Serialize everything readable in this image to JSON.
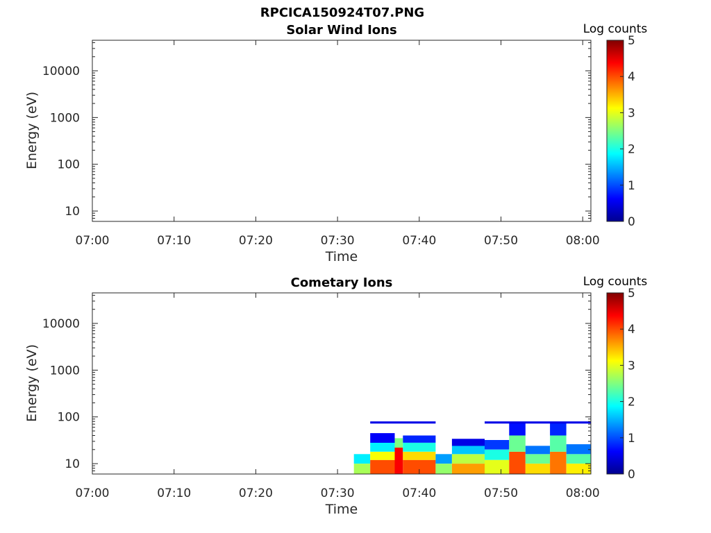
{
  "figure_title": "RPCICA150924T07.PNG",
  "colormap": "jet",
  "chart_data": [
    {
      "type": "heatmap",
      "title": "Solar Wind Ions",
      "xlabel": "Time",
      "ylabel": "Energy (eV)",
      "y_scale": "log",
      "xlim": [
        "07:00",
        "08:01"
      ],
      "ylim": [
        6,
        45000
      ],
      "x_ticks": [
        "07:00",
        "07:10",
        "07:20",
        "07:30",
        "07:40",
        "07:50",
        "08:00"
      ],
      "y_ticks": [
        "10",
        "100",
        "1000",
        "10000"
      ],
      "colorbar": {
        "label": "Log counts",
        "range": [
          0,
          5
        ],
        "ticks": [
          "0",
          "1",
          "2",
          "3",
          "4",
          "5"
        ]
      },
      "cells": []
    },
    {
      "type": "heatmap",
      "title": "Cometary Ions",
      "xlabel": "Time",
      "ylabel": "Energy (eV)",
      "y_scale": "log",
      "xlim": [
        "07:00",
        "08:01"
      ],
      "ylim": [
        6,
        45000
      ],
      "x_ticks": [
        "07:00",
        "07:10",
        "07:20",
        "07:30",
        "07:40",
        "07:50",
        "08:00"
      ],
      "y_ticks": [
        "10",
        "100",
        "1000",
        "10000"
      ],
      "colorbar": {
        "label": "Log counts",
        "range": [
          0,
          5
        ],
        "ticks": [
          "0",
          "1",
          "2",
          "3",
          "4",
          "5"
        ]
      },
      "time_range_with_data": [
        "07:32",
        "08:01"
      ],
      "cells": [
        {
          "t0": "07:32",
          "t1": "07:34",
          "e_lo": 6,
          "e_hi": 10,
          "log_counts": 2.7
        },
        {
          "t0": "07:32",
          "t1": "07:34",
          "e_lo": 10,
          "e_hi": 16,
          "log_counts": 1.8
        },
        {
          "t0": "07:34",
          "t1": "07:37",
          "e_lo": 6,
          "e_hi": 12,
          "log_counts": 4.0
        },
        {
          "t0": "07:34",
          "t1": "07:37",
          "e_lo": 12,
          "e_hi": 18,
          "log_counts": 3.1
        },
        {
          "t0": "07:34",
          "t1": "07:37",
          "e_lo": 18,
          "e_hi": 28,
          "log_counts": 1.8
        },
        {
          "t0": "07:34",
          "t1": "07:37",
          "e_lo": 28,
          "e_hi": 45,
          "log_counts": 0.6
        },
        {
          "t0": "07:37",
          "t1": "07:38",
          "e_lo": 6,
          "e_hi": 22,
          "log_counts": 4.4
        },
        {
          "t0": "07:37",
          "t1": "07:38",
          "e_lo": 22,
          "e_hi": 35,
          "log_counts": 2.5
        },
        {
          "t0": "07:38",
          "t1": "07:42",
          "e_lo": 6,
          "e_hi": 12,
          "log_counts": 4.0
        },
        {
          "t0": "07:38",
          "t1": "07:42",
          "e_lo": 12,
          "e_hi": 18,
          "log_counts": 3.3
        },
        {
          "t0": "07:38",
          "t1": "07:42",
          "e_lo": 18,
          "e_hi": 28,
          "log_counts": 2.0
        },
        {
          "t0": "07:38",
          "t1": "07:42",
          "e_lo": 28,
          "e_hi": 40,
          "log_counts": 0.8
        },
        {
          "t0": "07:42",
          "t1": "07:44",
          "e_lo": 6,
          "e_hi": 10,
          "log_counts": 2.6
        },
        {
          "t0": "07:42",
          "t1": "07:44",
          "e_lo": 10,
          "e_hi": 16,
          "log_counts": 1.4
        },
        {
          "t0": "07:44",
          "t1": "07:48",
          "e_lo": 6,
          "e_hi": 10,
          "log_counts": 3.6
        },
        {
          "t0": "07:44",
          "t1": "07:48",
          "e_lo": 10,
          "e_hi": 16,
          "log_counts": 2.8
        },
        {
          "t0": "07:44",
          "t1": "07:48",
          "e_lo": 16,
          "e_hi": 24,
          "log_counts": 1.6
        },
        {
          "t0": "07:44",
          "t1": "07:48",
          "e_lo": 24,
          "e_hi": 34,
          "log_counts": 0.5
        },
        {
          "t0": "07:48",
          "t1": "07:51",
          "e_lo": 6,
          "e_hi": 12,
          "log_counts": 3.0
        },
        {
          "t0": "07:48",
          "t1": "07:51",
          "e_lo": 12,
          "e_hi": 20,
          "log_counts": 2.0
        },
        {
          "t0": "07:48",
          "t1": "07:51",
          "e_lo": 20,
          "e_hi": 32,
          "log_counts": 0.9
        },
        {
          "t0": "07:51",
          "t1": "07:53",
          "e_lo": 6,
          "e_hi": 18,
          "log_counts": 4.0
        },
        {
          "t0": "07:51",
          "t1": "07:53",
          "e_lo": 18,
          "e_hi": 40,
          "log_counts": 2.4
        },
        {
          "t0": "07:51",
          "t1": "07:53",
          "e_lo": 40,
          "e_hi": 75,
          "log_counts": 0.7
        },
        {
          "t0": "07:53",
          "t1": "07:56",
          "e_lo": 6,
          "e_hi": 10,
          "log_counts": 3.3
        },
        {
          "t0": "07:53",
          "t1": "07:56",
          "e_lo": 10,
          "e_hi": 16,
          "log_counts": 2.4
        },
        {
          "t0": "07:53",
          "t1": "07:56",
          "e_lo": 16,
          "e_hi": 24,
          "log_counts": 1.2
        },
        {
          "t0": "07:56",
          "t1": "07:58",
          "e_lo": 6,
          "e_hi": 18,
          "log_counts": 3.8
        },
        {
          "t0": "07:56",
          "t1": "07:58",
          "e_lo": 18,
          "e_hi": 40,
          "log_counts": 2.3
        },
        {
          "t0": "07:56",
          "t1": "07:58",
          "e_lo": 40,
          "e_hi": 75,
          "log_counts": 0.8
        },
        {
          "t0": "07:58",
          "t1": "08:01",
          "e_lo": 6,
          "e_hi": 10,
          "log_counts": 3.2
        },
        {
          "t0": "07:58",
          "t1": "08:01",
          "e_lo": 10,
          "e_hi": 16,
          "log_counts": 2.3
        },
        {
          "t0": "07:58",
          "t1": "08:01",
          "e_lo": 16,
          "e_hi": 26,
          "log_counts": 1.2
        },
        {
          "t0": "07:34",
          "t1": "07:42",
          "e_lo": 72,
          "e_hi": 80,
          "log_counts": 0.5
        },
        {
          "t0": "07:48",
          "t1": "08:01",
          "e_lo": 72,
          "e_hi": 80,
          "log_counts": 0.5
        }
      ]
    }
  ]
}
